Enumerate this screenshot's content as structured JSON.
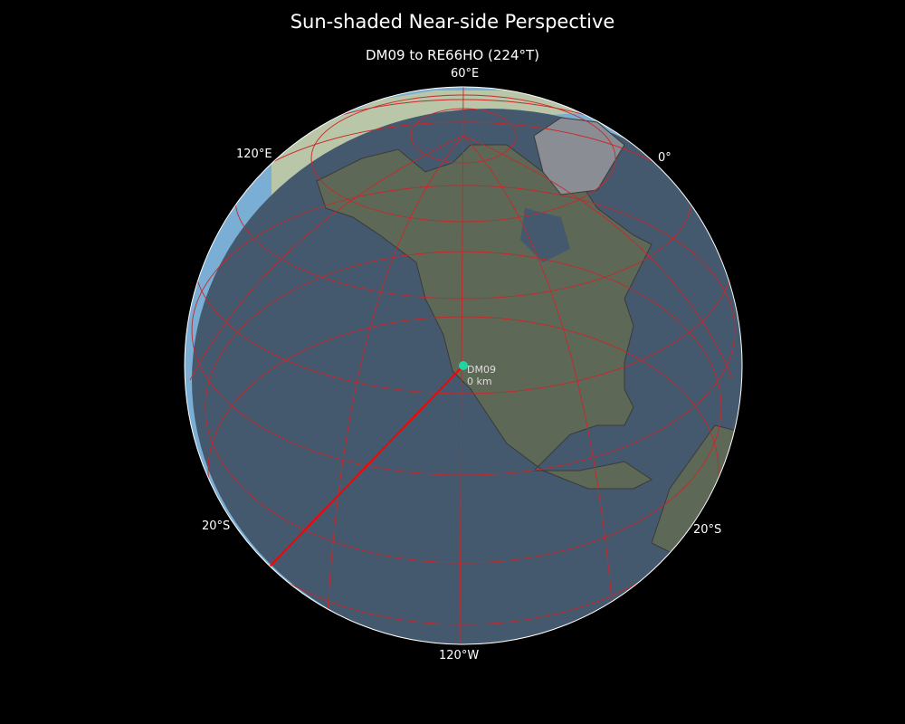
{
  "title": "Sun-shaded Near-side Perspective",
  "subtitle": "DM09 to RE66HO (224°T)",
  "graticule_labels": {
    "top": "60°E",
    "upper_left": "120°E",
    "upper_right": "0°",
    "lower_left": "20°S",
    "lower_right": "20°S",
    "bottom": "120°W"
  },
  "marker": {
    "name": "DM09",
    "distance": "0 km",
    "color": "#1fd6a0"
  },
  "path": {
    "from": "DM09",
    "to": "RE66HO",
    "bearing": "224°T",
    "color": "#ff0000"
  },
  "colors": {
    "ocean_day": "#7aaed4",
    "ocean_night": "#44596e",
    "land_night": "#5c6456",
    "graticule": "#c8282a",
    "background": "#000000"
  }
}
